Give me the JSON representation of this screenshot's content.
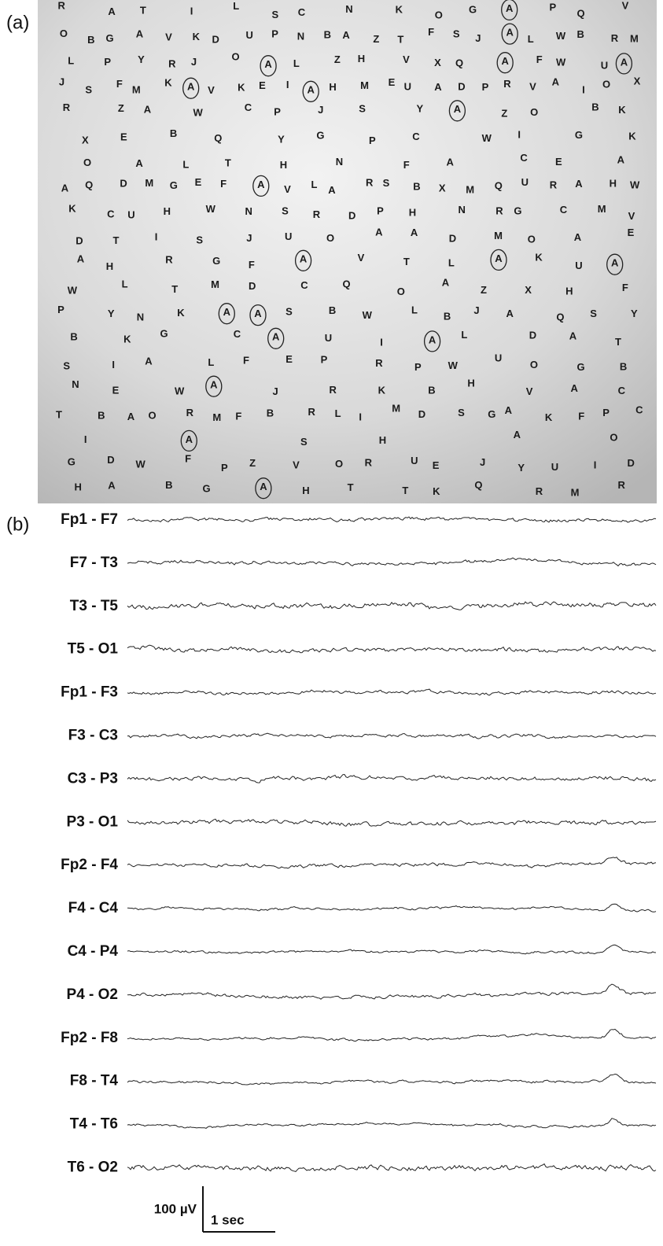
{
  "panel_a": {
    "label": "(a)",
    "rows": [
      "RATILSCNKOGAPQV",
      "OBGAVKDUPNBAZTFSJALWBRM",
      "LPYRJOALZHVXQAFWUA",
      "JSFMKAVKEIAHMEUADPRVAIOX",
      "RZAWCPJSYAZOBK",
      "XEBQYGPCWIGK",
      "OALTHNFACEA",
      "AQDMGEFAVLARSBXMQURAHW",
      "KCUHWNSRDPHNRGCMV",
      "DTISJUOAADMOAE",
      "AHRGFAVTLAKUA",
      "WLTMDCQOAZXHF",
      "PYNKAASBWLBJAQSY",
      "BKGCAUIALDAT",
      "SIALFEPRPWUOGB",
      "NEWAJRKBHVAC",
      "TBAORMFBRLIMDSGAKFPC",
      "IASHAO",
      "GDWFPZVORUEJYUID",
      "HABGAHTTKQRMR"
    ]
  },
  "panel_b": {
    "label": "(b)",
    "channels": [
      "Fp1 - F7",
      "F7 - T3",
      "T3 - T5",
      "T5 - O1",
      "Fp1 - F3",
      "F3 - C3",
      "C3 - P3",
      "P3 - O1",
      "Fp2 - F4",
      "F4 - C4",
      "C4 - P4",
      "P4 - O2",
      "Fp2 - F8",
      "F8 - T4",
      "T4 - T6",
      "T6 - O2"
    ],
    "scale": {
      "amplitude": "100 µV",
      "time": "1 sec"
    }
  }
}
